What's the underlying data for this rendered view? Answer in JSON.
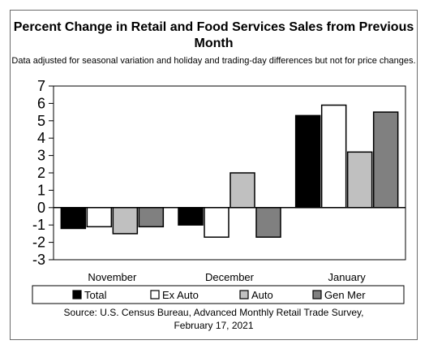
{
  "chart_data": {
    "type": "bar",
    "title": "Percent Change in Retail and Food Services Sales from Previous Month",
    "subtitle": "Data adjusted for seasonal variation and holiday and trading-day differences but not for price changes.",
    "categories": [
      "November",
      "December",
      "January"
    ],
    "series": [
      {
        "name": "Total",
        "color": "#000000",
        "values": [
          -1.2,
          -1.0,
          5.3
        ]
      },
      {
        "name": "Ex Auto",
        "color": "#ffffff",
        "values": [
          -1.1,
          -1.7,
          5.9
        ]
      },
      {
        "name": "Auto",
        "color": "#c0c0c0",
        "values": [
          -1.5,
          2.0,
          3.2
        ]
      },
      {
        "name": "Gen Mer",
        "color": "#808080",
        "values": [
          -1.1,
          -1.7,
          5.5
        ]
      }
    ],
    "ylim": [
      -3,
      7
    ],
    "yticks": [
      7,
      6,
      5,
      4,
      3,
      2,
      1,
      0,
      -1,
      -2,
      -3
    ],
    "grid": false,
    "legend": "bottom",
    "source_lines": [
      "Source: U.S. Census Bureau, Advanced Monthly Retail Trade Survey,",
      "February 17, 2021"
    ]
  }
}
